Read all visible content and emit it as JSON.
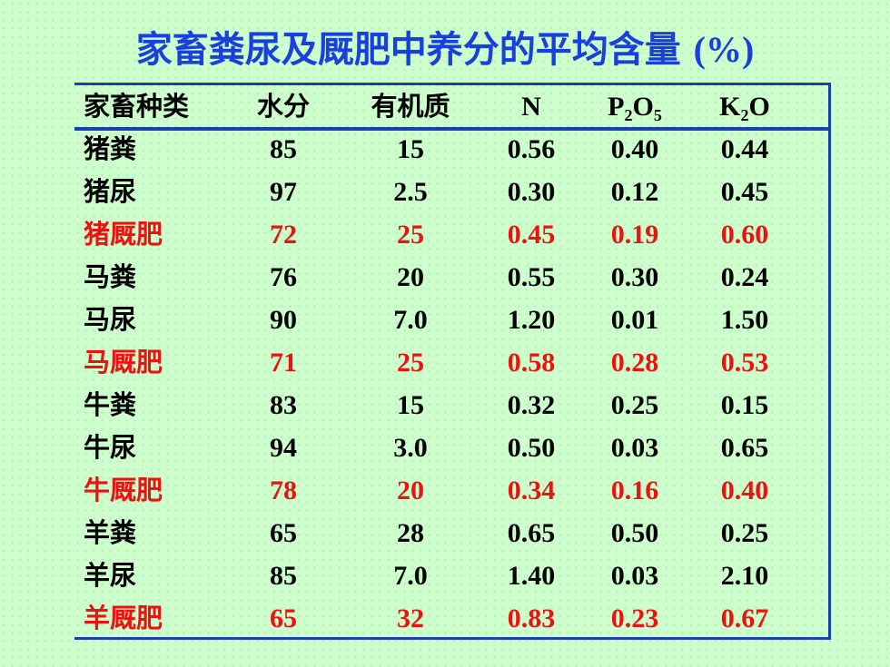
{
  "title": {
    "main": "家畜粪尿及厩肥中养分的平均含量",
    "unit": "(%)"
  },
  "table": {
    "headers": [
      {
        "text": "家畜种类"
      },
      {
        "text": "水分"
      },
      {
        "text": "有机质"
      },
      {
        "text": "N"
      },
      {
        "base1": "P",
        "sub1": "2",
        "base2": "O",
        "sub2": "5"
      },
      {
        "base1": "K",
        "sub1": "2",
        "base2": "O"
      }
    ],
    "rows": [
      {
        "name": "猪粪",
        "water": "85",
        "organic": "15",
        "n": "0.56",
        "p2o5": "0.40",
        "k2o": "0.44",
        "highlight": false
      },
      {
        "name": "猪尿",
        "water": "97",
        "organic": "2.5",
        "n": "0.30",
        "p2o5": "0.12",
        "k2o": "0.45",
        "highlight": false
      },
      {
        "name": "猪厩肥",
        "water": "72",
        "organic": "25",
        "n": "0.45",
        "p2o5": "0.19",
        "k2o": "0.60",
        "highlight": true
      },
      {
        "name": "马粪",
        "water": "76",
        "organic": "20",
        "n": "0.55",
        "p2o5": "0.30",
        "k2o": "0.24",
        "highlight": false
      },
      {
        "name": "马尿",
        "water": "90",
        "organic": "7.0",
        "n": "1.20",
        "p2o5": "0.01",
        "k2o": "1.50",
        "highlight": false
      },
      {
        "name": "马厩肥",
        "water": "71",
        "organic": "25",
        "n": "0.58",
        "p2o5": "0.28",
        "k2o": "0.53",
        "highlight": true
      },
      {
        "name": "牛粪",
        "water": "83",
        "organic": "15",
        "n": "0.32",
        "p2o5": "0.25",
        "k2o": "0.15",
        "highlight": false
      },
      {
        "name": "牛尿",
        "water": "94",
        "organic": "3.0",
        "n": "0.50",
        "p2o5": "0.03",
        "k2o": "0.65",
        "highlight": false
      },
      {
        "name": "牛厩肥",
        "water": "78",
        "organic": "20",
        "n": "0.34",
        "p2o5": "0.16",
        "k2o": "0.40",
        "highlight": true
      },
      {
        "name": "羊粪",
        "water": "65",
        "organic": "28",
        "n": "0.65",
        "p2o5": "0.50",
        "k2o": "0.25",
        "highlight": false
      },
      {
        "name": "羊尿",
        "water": "85",
        "organic": "7.0",
        "n": "1.40",
        "p2o5": "0.03",
        "k2o": "2.10",
        "highlight": false
      },
      {
        "name": "羊厩肥",
        "water": "65",
        "organic": "32",
        "n": "0.83",
        "p2o5": "0.23",
        "k2o": "0.67",
        "highlight": true
      }
    ]
  },
  "colors": {
    "background": "#ccffcc",
    "title": "#1a3fe0",
    "rule": "#1a3fb0",
    "highlight_text": "#ee1111",
    "normal_text": "#000000"
  }
}
